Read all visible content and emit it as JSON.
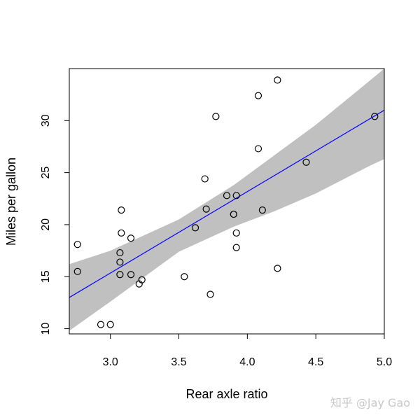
{
  "chart_data": {
    "type": "scatter",
    "xlabel": "Rear axle ratio",
    "ylabel": "Miles per gallon",
    "xlim": [
      2.7,
      5.0
    ],
    "ylim": [
      9.5,
      35.0
    ],
    "xticks": [
      3.0,
      3.5,
      4.0,
      4.5,
      5.0
    ],
    "xtick_labels": [
      "3.0",
      "3.5",
      "4.0",
      "4.5",
      "5.0"
    ],
    "yticks": [
      10,
      15,
      20,
      25,
      30
    ],
    "ytick_labels": [
      "10",
      "15",
      "20",
      "25",
      "30"
    ],
    "grid": false,
    "points": [
      {
        "x": 2.76,
        "y": 18.1
      },
      {
        "x": 2.76,
        "y": 15.5
      },
      {
        "x": 2.93,
        "y": 10.4
      },
      {
        "x": 3.0,
        "y": 10.4
      },
      {
        "x": 3.07,
        "y": 17.3
      },
      {
        "x": 3.07,
        "y": 16.4
      },
      {
        "x": 3.07,
        "y": 15.2
      },
      {
        "x": 3.08,
        "y": 21.4
      },
      {
        "x": 3.08,
        "y": 19.2
      },
      {
        "x": 3.15,
        "y": 18.7
      },
      {
        "x": 3.15,
        "y": 15.2
      },
      {
        "x": 3.21,
        "y": 14.3
      },
      {
        "x": 3.23,
        "y": 14.7
      },
      {
        "x": 3.54,
        "y": 15.0
      },
      {
        "x": 3.62,
        "y": 19.7
      },
      {
        "x": 3.69,
        "y": 24.4
      },
      {
        "x": 3.7,
        "y": 21.5
      },
      {
        "x": 3.73,
        "y": 13.3
      },
      {
        "x": 3.77,
        "y": 30.4
      },
      {
        "x": 3.85,
        "y": 22.8
      },
      {
        "x": 3.9,
        "y": 21.0
      },
      {
        "x": 3.9,
        "y": 21.0
      },
      {
        "x": 3.92,
        "y": 22.8
      },
      {
        "x": 3.92,
        "y": 19.2
      },
      {
        "x": 3.92,
        "y": 17.8
      },
      {
        "x": 4.08,
        "y": 32.4
      },
      {
        "x": 4.08,
        "y": 27.3
      },
      {
        "x": 4.11,
        "y": 21.4
      },
      {
        "x": 4.22,
        "y": 33.9
      },
      {
        "x": 4.22,
        "y": 15.8
      },
      {
        "x": 4.43,
        "y": 26.0
      },
      {
        "x": 4.93,
        "y": 30.4
      }
    ],
    "fit_line": {
      "x": [
        2.7,
        5.0
      ],
      "y": [
        13.0,
        31.0
      ],
      "color": "#0000ff"
    },
    "confidence_band": {
      "x": [
        2.7,
        3.0,
        3.5,
        3.9,
        4.2,
        4.5,
        4.9,
        5.0
      ],
      "lower": [
        9.8,
        12.6,
        17.4,
        19.8,
        21.3,
        23.0,
        25.7,
        26.3
      ],
      "upper": [
        16.2,
        17.5,
        20.5,
        23.8,
        26.7,
        29.6,
        33.9,
        35.0
      ],
      "color": "#c0c0c0"
    }
  },
  "watermark": "知乎 @Jay Gao"
}
